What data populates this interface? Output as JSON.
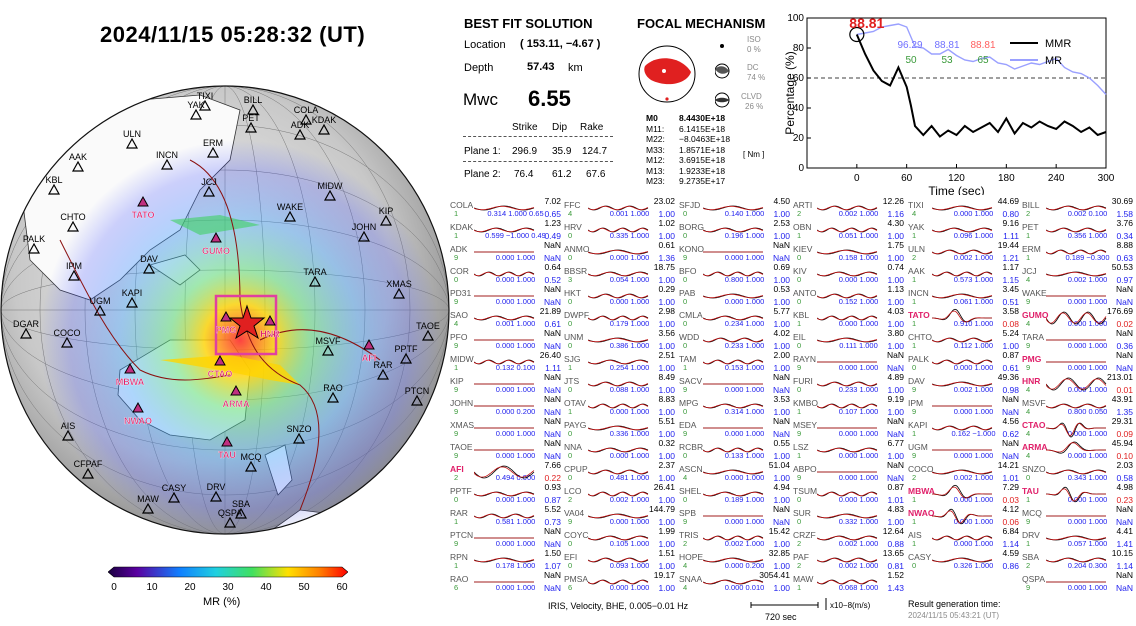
{
  "title": "2024/11/15  05:28:32 (UT)",
  "solution": {
    "heading": "BEST FIT SOLUTION",
    "location_label": "Location",
    "location_value": "( 153.11,  −4.67 )",
    "depth_label": "Depth",
    "depth_value": "57.43",
    "depth_unit": "km",
    "mw_label": "Mwc",
    "mw_value": "6.55",
    "col_strike": "Strike",
    "col_dip": "Dip",
    "col_rake": "Rake",
    "plane1_label": "Plane 1:",
    "plane1": [
      "296.9",
      "35.9",
      "124.7"
    ],
    "plane2_label": "Plane 2:",
    "plane2": [
      "76.4",
      "61.2",
      "67.6"
    ]
  },
  "focal": {
    "heading": "FOCAL MECHANISM",
    "iso_label": "ISO",
    "iso_value": "0 %",
    "dc_label": "DC",
    "dc_value": "74 %",
    "clvd_label": "CLVD",
    "clvd_value": "26 %",
    "tensor": [
      {
        "k": "M0",
        "v": "8.4430E+18"
      },
      {
        "k": "M11:",
        "v": "6.1415E+18"
      },
      {
        "k": "M22:",
        "v": "−8.0463E+18"
      },
      {
        "k": "M33:",
        "v": "1.8571E+18"
      },
      {
        "k": "M12:",
        "v": "3.6915E+18"
      },
      {
        "k": "M13:",
        "v": "1.9233E+18"
      },
      {
        "k": "M23:",
        "v": "9.2735E+17"
      }
    ],
    "unit": "[ Nm ]",
    "fill_color": "#e02020"
  },
  "mr_chart": {
    "peak_label": "88.81",
    "legend_mmr": "MMR",
    "legend_mr": "MR",
    "stats_blue": [
      "96.29",
      "88.81"
    ],
    "stats_red": "88.81",
    "stats_green": [
      "50",
      "53",
      "65"
    ],
    "ylabel": "Percentage (%)",
    "xlabel": "Time (sec)",
    "y_ticks": [
      "0",
      "20",
      "40",
      "60",
      "80",
      "100"
    ],
    "x_ticks": [
      "0",
      "60",
      "120",
      "180",
      "240",
      "300"
    ],
    "threshold": 60
  },
  "chart_data": {
    "type": "line",
    "xlabel": "Time (sec)",
    "ylabel": "Percentage (%)",
    "xlim": [
      -60,
      300
    ],
    "ylim": [
      0,
      100
    ],
    "series": [
      {
        "name": "MMR",
        "color": "#9aa0ff",
        "x": [
          0,
          10,
          20,
          30,
          40,
          50,
          60,
          70,
          80,
          90,
          100,
          110,
          120,
          130,
          140,
          150,
          160,
          170,
          180,
          190,
          200,
          210,
          220,
          230,
          240,
          250,
          260,
          270,
          280,
          290,
          300
        ],
        "y": [
          89,
          90,
          91,
          94,
          95,
          96,
          94,
          81,
          80,
          76,
          76,
          79,
          75,
          72,
          71,
          73,
          74,
          70,
          69,
          66,
          68,
          70,
          69,
          71,
          73,
          67,
          64,
          63,
          60,
          55,
          49
        ]
      },
      {
        "name": "MR",
        "color": "#000000",
        "x": [
          0,
          10,
          20,
          30,
          40,
          50,
          60,
          65,
          70,
          80,
          90,
          100,
          110,
          120,
          130,
          140,
          150,
          160,
          170,
          180,
          190,
          200,
          210,
          220,
          230,
          240,
          250,
          260,
          270,
          280,
          290,
          300
        ],
        "y": [
          89,
          76,
          65,
          58,
          55,
          67,
          54,
          42,
          28,
          22,
          28,
          21,
          25,
          22,
          28,
          24,
          27,
          30,
          24,
          33,
          23,
          30,
          27,
          31,
          28,
          26,
          31,
          28,
          24,
          27,
          22,
          24
        ]
      }
    ]
  },
  "colorbar": {
    "label": "MR (%)",
    "ticks": [
      "0",
      "10",
      "20",
      "30",
      "40",
      "50",
      "60"
    ]
  },
  "map": {
    "stations_black": [
      "TIXI",
      "YAK",
      "BILL",
      "PET",
      "COLA",
      "ADK",
      "KDAK",
      "ULN",
      "ERM",
      "AAK",
      "INCN",
      "JCJ",
      "MIDW",
      "KBL",
      "CHTO",
      "WAKE",
      "KIP",
      "JOHN",
      "DAV",
      "PALK",
      "IPM",
      "KAPI",
      "UGM",
      "TARA",
      "XMAS",
      "DGAR",
      "COCO",
      "MSVF",
      "RAR",
      "PPTF",
      "TAOE",
      "PTCN",
      "RAO",
      "AIS",
      "SNZO",
      "CFPAF",
      "MCQ",
      "MAW",
      "CASY",
      "DRV",
      "SBA",
      "QSPA"
    ],
    "stations_pink": [
      "TATO",
      "GUMO",
      "PMG",
      "HNR",
      "CTAO",
      "AFI",
      "MBWA",
      "NWAO",
      "ARMA",
      "TAU"
    ]
  },
  "footer": {
    "network": "IRIS, Velocity,   BHE,  0.005−0.01 Hz",
    "scale": "720 sec",
    "amp_unit": "x10−8(m/s)",
    "result_label": "Result generation time:",
    "result_time": "2024/11/15 05:43:21 (UT)"
  },
  "stations": [
    {
      "n": "COLA",
      "mr": "7.02",
      "c": "1",
      "s": "0.314  1.000  0.65",
      "r": "0.65",
      "w": 1
    },
    {
      "n": "KDAK",
      "mr": "1.23",
      "c": "1",
      "s": "0.599  −1.000  0.49",
      "r": "0.49",
      "w": 1
    },
    {
      "n": "ADK",
      "mr": "NaN",
      "c": "9",
      "s": "0.000  1.000",
      "r": "NaN",
      "w": 0
    },
    {
      "n": "COR",
      "mr": "0.64",
      "c": "0",
      "s": "0.000  1.000",
      "r": "0.52",
      "w": 1
    },
    {
      "n": "PD31",
      "mr": "NaN",
      "c": "9",
      "s": "0.000  1.000",
      "r": "NaN",
      "w": 0
    },
    {
      "n": "SAO",
      "mr": "21.89",
      "c": "4",
      "s": "0.001  1.000",
      "r": "0.61",
      "w": 1
    },
    {
      "n": "PFO",
      "mr": "NaN",
      "c": "9",
      "s": "0.000  1.000",
      "r": "NaN",
      "w": 0
    },
    {
      "n": "MIDW",
      "mr": "26.40",
      "c": "1",
      "s": "0.132  0.100",
      "r": "1.11",
      "w": 1
    },
    {
      "n": "KIP",
      "mr": "NaN",
      "c": "9",
      "s": "0.000  1.000",
      "r": "NaN",
      "w": 0
    },
    {
      "n": "JOHN",
      "mr": "NaN",
      "c": "9",
      "s": "0.000  0.200",
      "r": "NaN",
      "w": 0
    },
    {
      "n": "XMAS",
      "mr": "NaN",
      "c": "9",
      "s": "0.000  1.000",
      "r": "NaN",
      "w": 0
    },
    {
      "n": "TAOE",
      "mr": "NaN",
      "c": "9",
      "s": "0.000  1.000",
      "r": "NaN",
      "w": 0
    },
    {
      "n": "AFI",
      "mr": "7.66",
      "c": "2",
      "s": "0.494  0.000",
      "r": "0.22",
      "w": 2,
      "hl": true,
      "bad": true
    },
    {
      "n": "PPTF",
      "mr": "0.93",
      "c": "0",
      "s": "0.000  1.000",
      "r": "0.87",
      "w": 1
    },
    {
      "n": "RAR",
      "mr": "5.52",
      "c": "1",
      "s": "0.581  1.000",
      "r": "0.73",
      "w": 1
    },
    {
      "n": "PTCN",
      "mr": "NaN",
      "c": "9",
      "s": "0.000  1.000",
      "r": "NaN",
      "w": 0
    },
    {
      "n": "RPN",
      "mr": "1.50",
      "c": "1",
      "s": "0.178  1.000",
      "r": "1.07",
      "w": 1
    },
    {
      "n": "RAO",
      "mr": "NaN",
      "c": "6",
      "s": "0.000  1.000",
      "r": "NaN",
      "w": 0
    },
    {
      "n": "FFC",
      "mr": "23.02",
      "c": "4",
      "s": "0.001  1.000",
      "r": "1.00",
      "w": 1
    },
    {
      "n": "HRV",
      "mr": "1.02",
      "c": "0",
      "s": "0.335  1.000",
      "r": "1.00",
      "w": 1
    },
    {
      "n": "ANMO",
      "mr": "0.61",
      "c": "0",
      "s": "0.000  1.000",
      "r": "1.36",
      "w": 1
    },
    {
      "n": "BBSR",
      "mr": "18.75",
      "c": "3",
      "s": "0.054  1.000",
      "r": "1.00",
      "w": 1
    },
    {
      "n": "HKT",
      "mr": "0.29",
      "c": "0",
      "s": "0.000  1.000",
      "r": "1.00",
      "w": 1
    },
    {
      "n": "DWPF",
      "mr": "2.98",
      "c": "0",
      "s": "0.179  1.000",
      "r": "1.00",
      "w": 1
    },
    {
      "n": "UNM",
      "mr": "3.56",
      "c": "0",
      "s": "0.386  1.000",
      "r": "1.00",
      "w": 1
    },
    {
      "n": "SJG",
      "mr": "2.51",
      "c": "1",
      "s": "0.254  1.000",
      "r": "1.00",
      "w": 1
    },
    {
      "n": "JTS",
      "mr": "8.49",
      "c": "0",
      "s": "0.088  1.000",
      "r": "1.00",
      "w": 1
    },
    {
      "n": "OTAV",
      "mr": "8.83",
      "c": "1",
      "s": "0.000  1.000",
      "r": "1.00",
      "w": 1
    },
    {
      "n": "PAYG",
      "mr": "5.51",
      "c": "0",
      "s": "0.336  1.000",
      "r": "1.00",
      "w": 1
    },
    {
      "n": "NNA",
      "mr": "0.32",
      "c": "0",
      "s": "0.000  1.000",
      "r": "1.00",
      "w": 1
    },
    {
      "n": "CPUP",
      "mr": "2.37",
      "c": "0",
      "s": "0.481  1.000",
      "r": "1.00",
      "w": 1
    },
    {
      "n": "LCO",
      "mr": "26.41",
      "c": "2",
      "s": "0.002  1.000",
      "r": "1.00",
      "w": 1
    },
    {
      "n": "VA04",
      "mr": "144.79",
      "c": "9",
      "s": "0.000  1.000",
      "r": "1.00",
      "w": 1
    },
    {
      "n": "COYC",
      "mr": "1.99",
      "c": "0",
      "s": "0.105  1.000",
      "r": "1.00",
      "w": 1
    },
    {
      "n": "EFI",
      "mr": "1.51",
      "c": "0",
      "s": "0.093  1.000",
      "r": "1.00",
      "w": 1
    },
    {
      "n": "PMSA",
      "mr": "19.17",
      "c": "6",
      "s": "0.000  1.000",
      "r": "1.00",
      "w": 1
    },
    {
      "n": "SFJD",
      "mr": "4.50",
      "c": "0",
      "s": "0.140  1.000",
      "r": "1.00",
      "w": 1
    },
    {
      "n": "BORG",
      "mr": "2.53",
      "c": "0",
      "s": "0.196  1.000",
      "r": "1.00",
      "w": 1
    },
    {
      "n": "KONO",
      "mr": "NaN",
      "c": "9",
      "s": "0.000  1.000",
      "r": "NaN",
      "w": 0
    },
    {
      "n": "BFO",
      "mr": "0.69",
      "c": "0",
      "s": "0.800  1.000",
      "r": "1.00",
      "w": 1
    },
    {
      "n": "PAB",
      "mr": "0.53",
      "c": "0",
      "s": "0.000  1.000",
      "r": "1.00",
      "w": 1
    },
    {
      "n": "CMLA",
      "mr": "5.77",
      "c": "0",
      "s": "0.234  1.000",
      "r": "1.00",
      "w": 1
    },
    {
      "n": "WDD",
      "mr": "4.02",
      "c": "0",
      "s": "0.233  1.000",
      "r": "1.00",
      "w": 1
    },
    {
      "n": "TAM",
      "mr": "2.00",
      "c": "1",
      "s": "0.153  1.000",
      "r": "1.00",
      "w": 1
    },
    {
      "n": "SACV",
      "mr": "NaN",
      "c": "9",
      "s": "0.000  1.000",
      "r": "NaN",
      "w": 0
    },
    {
      "n": "MPG",
      "mr": "3.53",
      "c": "0",
      "s": "0.314  1.000",
      "r": "1.00",
      "w": 1
    },
    {
      "n": "EDA",
      "mr": "NaN",
      "c": "9",
      "s": "0.000  1.000",
      "r": "NaN",
      "w": 0
    },
    {
      "n": "RCBR",
      "mr": "0.55",
      "c": "0",
      "s": "0.133  1.000",
      "r": "1.00",
      "w": 1
    },
    {
      "n": "ASCN",
      "mr": "51.04",
      "c": "4",
      "s": "0.000  1.000",
      "r": "1.00",
      "w": 1
    },
    {
      "n": "SHEL",
      "mr": "4.94",
      "c": "0",
      "s": "0.189  1.000",
      "r": "1.00",
      "w": 1
    },
    {
      "n": "SPB",
      "mr": "NaN",
      "c": "9",
      "s": "0.000  1.000",
      "r": "NaN",
      "w": 0
    },
    {
      "n": "TRIS",
      "mr": "15.42",
      "c": "2",
      "s": "0.002  1.000",
      "r": "1.00",
      "w": 1
    },
    {
      "n": "HOPE",
      "mr": "32.85",
      "c": "4",
      "s": "0.000  0.200",
      "r": "1.00",
      "w": 1
    },
    {
      "n": "SNAA",
      "mr": "3054.41",
      "c": "4",
      "s": "0.000  0.010",
      "r": "1.00",
      "w": 1
    },
    {
      "n": "ARTI",
      "mr": "12.26",
      "c": "2",
      "s": "0.002  1.000",
      "r": "1.16",
      "w": 1
    },
    {
      "n": "OBN",
      "mr": "4.30",
      "c": "1",
      "s": "0.051  1.000",
      "r": "1.00",
      "w": 1
    },
    {
      "n": "KIEV",
      "mr": "1.75",
      "c": "0",
      "s": "0.158  1.000",
      "r": "1.00",
      "w": 1
    },
    {
      "n": "KIV",
      "mr": "0.74",
      "c": "0",
      "s": "0.000  1.000",
      "r": "1.00",
      "w": 1
    },
    {
      "n": "ANTO",
      "mr": "1.13",
      "c": "0",
      "s": "0.152  1.000",
      "r": "1.00",
      "w": 1
    },
    {
      "n": "KBL",
      "mr": "4.03",
      "c": "1",
      "s": "0.000  1.000",
      "r": "1.00",
      "w": 1
    },
    {
      "n": "EIL",
      "mr": "3.80",
      "c": "0",
      "s": "0.111  1.000",
      "r": "1.00",
      "w": 1
    },
    {
      "n": "RAYN",
      "mr": "NaN",
      "c": "9",
      "s": "0.000  1.000",
      "r": "NaN",
      "w": 0
    },
    {
      "n": "FURI",
      "mr": "4.89",
      "c": "0",
      "s": "0.233  1.000",
      "r": "1.00",
      "w": 1
    },
    {
      "n": "KMBO",
      "mr": "9.19",
      "c": "1",
      "s": "0.107  1.000",
      "r": "1.00",
      "w": 1
    },
    {
      "n": "MSEY",
      "mr": "NaN",
      "c": "9",
      "s": "0.000  1.000",
      "r": "NaN",
      "w": 0
    },
    {
      "n": "LSZ",
      "mr": "6.77",
      "c": "1",
      "s": "0.000  1.000",
      "r": "1.00",
      "w": 1
    },
    {
      "n": "ABPO",
      "mr": "NaN",
      "c": "9",
      "s": "0.000  1.000",
      "r": "NaN",
      "w": 0
    },
    {
      "n": "TSUM",
      "mr": "0.87",
      "c": "0",
      "s": "0.000  1.000",
      "r": "1.01",
      "w": 1
    },
    {
      "n": "SUR",
      "mr": "4.83",
      "c": "0",
      "s": "0.332  1.000",
      "r": "1.00",
      "w": 1
    },
    {
      "n": "CRZF",
      "mr": "12.64",
      "c": "2",
      "s": "0.002  1.000",
      "r": "0.88",
      "w": 1
    },
    {
      "n": "PAF",
      "mr": "13.65",
      "c": "2",
      "s": "0.002  1.000",
      "r": "0.81",
      "w": 1
    },
    {
      "n": "MAW",
      "mr": "1.52",
      "c": "1",
      "s": "0.068  1.000",
      "r": "1.43",
      "w": 1
    },
    {
      "n": "TIXI",
      "mr": "44.69",
      "c": "4",
      "s": "0.000  1.000",
      "r": "0.80",
      "w": 1
    },
    {
      "n": "YAK",
      "mr": "9.16",
      "c": "1",
      "s": "0.096  1.000",
      "r": "1.11",
      "w": 1
    },
    {
      "n": "ULN",
      "mr": "19.44",
      "c": "2",
      "s": "0.002  1.000",
      "r": "1.21",
      "w": 1
    },
    {
      "n": "AAK",
      "mr": "1.17",
      "c": "1",
      "s": "0.573  1.000",
      "r": "1.15",
      "w": 1
    },
    {
      "n": "INCN",
      "mr": "3.45",
      "c": "1",
      "s": "0.061  1.000",
      "r": "0.51",
      "w": 1
    },
    {
      "n": "TATO",
      "mr": "3.58",
      "c": "1",
      "s": "0.910  1.000",
      "r": "0.08",
      "w": 3,
      "hl": true,
      "bad": true
    },
    {
      "n": "CHTO",
      "mr": "5.24",
      "c": "1",
      "s": "0.112  1.000",
      "r": "1.00",
      "w": 1
    },
    {
      "n": "PALK",
      "mr": "0.87",
      "c": "0",
      "s": "0.000  1.000",
      "r": "0.61",
      "w": 1
    },
    {
      "n": "DAV",
      "mr": "49.36",
      "c": "9",
      "s": "0.002  1.000",
      "r": "0.98",
      "w": 1
    },
    {
      "n": "IPM",
      "mr": "NaN",
      "c": "9",
      "s": "0.000  1.000",
      "r": "NaN",
      "w": 0
    },
    {
      "n": "KAPI",
      "mr": "4.56",
      "c": "1",
      "s": "0.162  −1.000",
      "r": "0.62",
      "w": 1
    },
    {
      "n": "UGM",
      "mr": "NaN",
      "c": "9",
      "s": "0.000  1.000",
      "r": "NaN",
      "w": 0
    },
    {
      "n": "COCO",
      "mr": "14.21",
      "c": "2",
      "s": "0.002  1.000",
      "r": "1.01",
      "w": 1
    },
    {
      "n": "MBWA",
      "mr": "7.29",
      "c": "1",
      "s": "0.000  1.000",
      "r": "0.03",
      "w": 3,
      "hl": true,
      "bad": true
    },
    {
      "n": "NWAO",
      "mr": "4.12",
      "c": "1",
      "s": "0.000  1.000",
      "r": "0.06",
      "w": 3,
      "hl": true,
      "bad": true
    },
    {
      "n": "AIS",
      "mr": "6.84",
      "c": "1",
      "s": "0.000  1.000",
      "r": "1.14",
      "w": 1
    },
    {
      "n": "CASY",
      "mr": "4.59",
      "c": "0",
      "s": "0.326  1.000",
      "r": "0.86",
      "w": 1
    },
    {
      "n": "BILL",
      "mr": "30.69",
      "c": "2",
      "s": "0.002  0.100",
      "r": "1.58",
      "w": 1
    },
    {
      "n": "PET",
      "mr": "3.76",
      "c": "1",
      "s": "0.356  1.000",
      "r": "0.34",
      "w": 1
    },
    {
      "n": "ERM",
      "mr": "8.88",
      "c": "1",
      "s": "0.189  −0.300",
      "r": "0.63",
      "w": 1
    },
    {
      "n": "JCJ",
      "mr": "50.53",
      "c": "4",
      "s": "0.002  1.000",
      "r": "0.97",
      "w": 1
    },
    {
      "n": "WAKE",
      "mr": "NaN",
      "c": "9",
      "s": "0.000  1.000",
      "r": "NaN",
      "w": 0
    },
    {
      "n": "GUMO",
      "mr": "176.69",
      "c": "4",
      "s": "0.000  1.000",
      "r": "0.02",
      "w": 2,
      "hl": true,
      "bad": true
    },
    {
      "n": "TARA",
      "mr": "NaN",
      "c": "9",
      "s": "0.000  1.000",
      "r": "0.36",
      "w": 0
    },
    {
      "n": "PMG",
      "mr": "NaN",
      "c": "9",
      "s": "0.000  1.000",
      "r": "NaN",
      "w": 0,
      "hl": true
    },
    {
      "n": "HNR",
      "mr": "213.01",
      "c": "4",
      "s": "0.000  1.000",
      "r": "0.01",
      "w": 2,
      "hl": true,
      "bad": true
    },
    {
      "n": "MSVF",
      "mr": "43.91",
      "c": "4",
      "s": "0.800  0.050",
      "r": "1.35",
      "w": 1
    },
    {
      "n": "CTAO",
      "mr": "29.31",
      "c": "4",
      "s": "0.000  1.000",
      "r": "0.09",
      "w": 3,
      "hl": true,
      "bad": true
    },
    {
      "n": "ARMA",
      "mr": "45.94",
      "c": "4",
      "s": "0.000  1.000",
      "r": "0.10",
      "w": 3,
      "hl": true,
      "bad": true
    },
    {
      "n": "SNZO",
      "mr": "2.03",
      "c": "0",
      "s": "0.343  1.000",
      "r": "0.58",
      "w": 1
    },
    {
      "n": "TAU",
      "mr": "4.98",
      "c": "1",
      "s": "0.000  1.000",
      "r": "0.23",
      "w": 3,
      "hl": true,
      "bad": true
    },
    {
      "n": "MCQ",
      "mr": "NaN",
      "c": "9",
      "s": "0.000  1.000",
      "r": "NaN",
      "w": 0
    },
    {
      "n": "DRV",
      "mr": "4.41",
      "c": "1",
      "s": "0.057  1.000",
      "r": "1.41",
      "w": 1
    },
    {
      "n": "SBA",
      "mr": "10.15",
      "c": "2",
      "s": "0.204  0.300",
      "r": "1.14",
      "w": 1
    },
    {
      "n": "QSPA",
      "mr": "NaN",
      "c": "9",
      "s": "0.000  1.000",
      "r": "NaN",
      "w": 0
    }
  ]
}
